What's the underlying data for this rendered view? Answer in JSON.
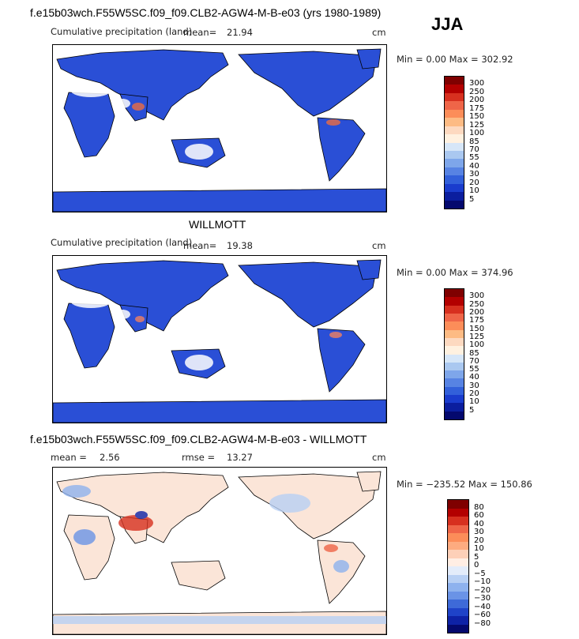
{
  "season": "JJA",
  "panels": [
    {
      "id": "model",
      "title": "f.e15b03wch.F55W5SC.f09_f09.CLB2-AGW4-M-B-e03 (yrs 1980-1989)",
      "left_label": "Cumulative precipitation (land)",
      "stat_label": "mean=",
      "stat_value": "21.94",
      "units": "cm",
      "minmax": "Min =    0.00 Max = 302.92",
      "colorbar_levels": [
        "300",
        "250",
        "200",
        "175",
        "150",
        "125",
        "100",
        "85",
        "70",
        "55",
        "40",
        "30",
        "20",
        "10",
        "5"
      ],
      "colorbar_colors": [
        "#7f0000",
        "#b30000",
        "#d7301f",
        "#ef6548",
        "#fc8d59",
        "#fdbb84",
        "#fdd9c0",
        "#fff1e0",
        "#d6e6f8",
        "#aac8f0",
        "#7ea6ea",
        "#5783e3",
        "#3260da",
        "#1a3ccd",
        "#0b1e9e",
        "#04096e"
      ]
    },
    {
      "id": "obs",
      "title": "WILLMOTT",
      "left_label": "Cumulative precipitation (land)",
      "stat_label": "mean=",
      "stat_value": "19.38",
      "units": "cm",
      "minmax": "Min =    0.00 Max = 374.96",
      "colorbar_levels": [
        "300",
        "250",
        "200",
        "175",
        "150",
        "125",
        "100",
        "85",
        "70",
        "55",
        "40",
        "30",
        "20",
        "10",
        "5"
      ],
      "colorbar_colors": [
        "#7f0000",
        "#b30000",
        "#d7301f",
        "#ef6548",
        "#fc8d59",
        "#fdbb84",
        "#fdd9c0",
        "#fff1e0",
        "#d6e6f8",
        "#aac8f0",
        "#7ea6ea",
        "#5783e3",
        "#3260da",
        "#1a3ccd",
        "#0b1e9e",
        "#04096e"
      ]
    },
    {
      "id": "diff",
      "title": "f.e15b03wch.F55W5SC.f09_f09.CLB2-AGW4-M-B-e03 - WILLMOTT",
      "mean_label": "mean =",
      "mean_value": "2.56",
      "rmse_label": "rmse =",
      "rmse_value": "13.27",
      "units": "cm",
      "minmax": "Min = −235.52 Max = 150.86",
      "colorbar_levels": [
        "80",
        "60",
        "40",
        "30",
        "20",
        "10",
        "5",
        "0",
        "−5",
        "−10",
        "−20",
        "−30",
        "−40",
        "−60",
        "−80"
      ],
      "colorbar_colors": [
        "#7f0000",
        "#b30000",
        "#d7301f",
        "#ef6548",
        "#fc8d59",
        "#fdab80",
        "#fdd0b8",
        "#ffeee4",
        "#e3ecfa",
        "#b8d0f4",
        "#8eb2ee",
        "#6a93e6",
        "#3e6ad8",
        "#1f43c8",
        "#0e22a6",
        "#04096e"
      ]
    }
  ],
  "chart_data": [
    {
      "type": "heatmap",
      "title": "f.e15b03wch.F55W5SC.f09_f09.CLB2-AGW4-M-B-e03 (yrs 1980-1989)",
      "subtitle": "Cumulative precipitation (land)",
      "season": "JJA",
      "units": "cm",
      "mean": 21.94,
      "min": 0.0,
      "max": 302.92,
      "levels": [
        5,
        10,
        20,
        30,
        40,
        55,
        70,
        85,
        100,
        125,
        150,
        175,
        200,
        250,
        300
      ]
    },
    {
      "type": "heatmap",
      "title": "WILLMOTT",
      "subtitle": "Cumulative precipitation (land)",
      "units": "cm",
      "mean": 19.38,
      "min": 0.0,
      "max": 374.96,
      "levels": [
        5,
        10,
        20,
        30,
        40,
        55,
        70,
        85,
        100,
        125,
        150,
        175,
        200,
        250,
        300
      ]
    },
    {
      "type": "heatmap",
      "title": "f.e15b03wch.F55W5SC.f09_f09.CLB2-AGW4-M-B-e03 - WILLMOTT",
      "units": "cm",
      "mean": 2.56,
      "rmse": 13.27,
      "min": -235.52,
      "max": 150.86,
      "levels": [
        -80,
        -60,
        -40,
        -30,
        -20,
        -10,
        -5,
        0,
        5,
        10,
        20,
        30,
        40,
        60,
        80
      ]
    }
  ]
}
